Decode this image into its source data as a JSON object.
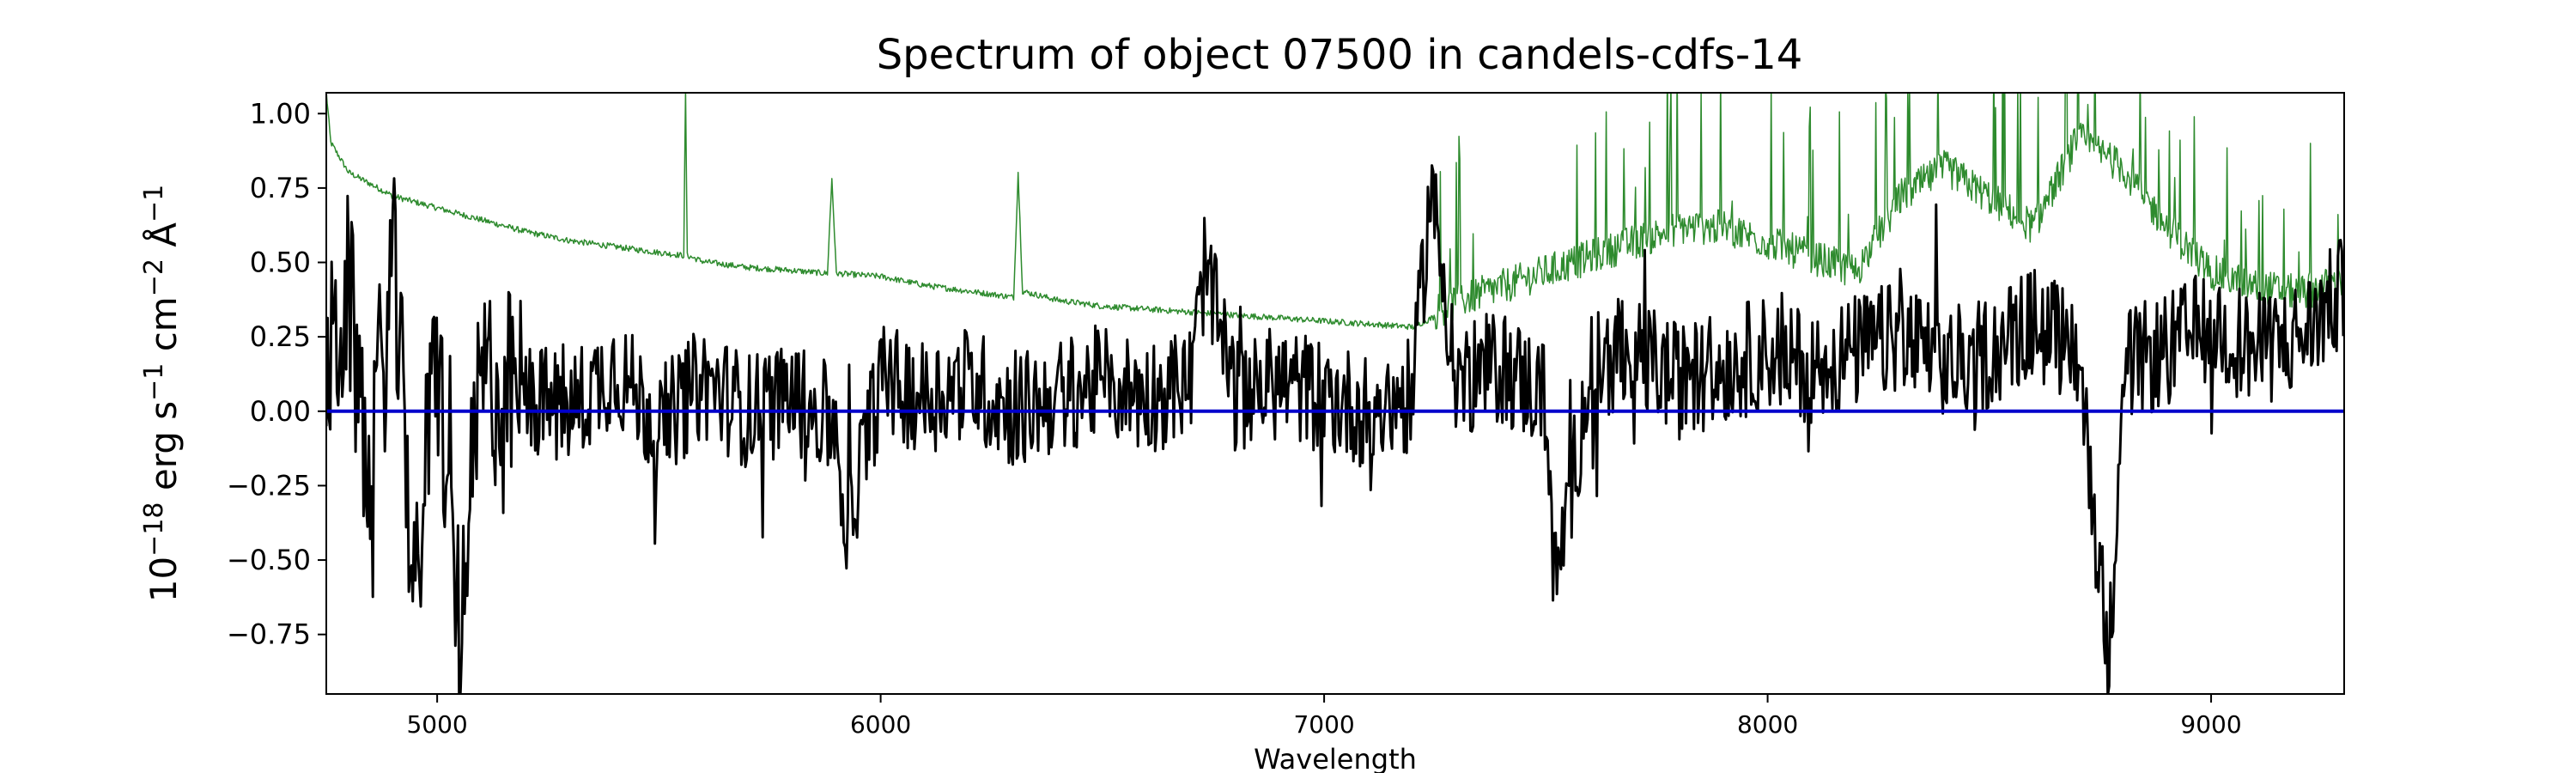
{
  "chart_data": {
    "type": "line",
    "title": "Spectrum of object 07500 in candels-cdfs-14",
    "xlabel": "Wavelength",
    "ylabel": {
      "parts": [
        "10",
        "−18",
        " erg s",
        "−1",
        " cm",
        "−2",
        " Å",
        "−1"
      ]
    },
    "xlim": [
      4750,
      9300
    ],
    "ylim": [
      -0.95,
      1.07
    ],
    "xticks": [
      5000,
      6000,
      7000,
      8000,
      9000
    ],
    "xtick_labels": [
      "5000",
      "6000",
      "7000",
      "8000",
      "9000"
    ],
    "yticks": [
      -0.75,
      -0.5,
      -0.25,
      0.0,
      0.25,
      0.5,
      0.75,
      1.0
    ],
    "ytick_labels": [
      "−0.75",
      "−0.50",
      "−0.25",
      "0.00",
      "0.25",
      "0.50",
      "0.75",
      "1.00"
    ],
    "grid": false,
    "series": [
      {
        "role": "error-spectrum",
        "color": "#2e8b2e",
        "x": [
          4750,
          4760,
          4800,
          4850,
          4900,
          4950,
          5000,
          5100,
          5200,
          5300,
          5400,
          5500,
          5556,
          5560,
          5564,
          5600,
          5700,
          5800,
          5880,
          5890,
          5900,
          6000,
          6100,
          6200,
          6300,
          6310,
          6320,
          6400,
          6500,
          6600,
          6700,
          6800,
          6900,
          7000,
          7100,
          7200,
          7300,
          7400,
          7500,
          7600,
          7700,
          7800,
          7900,
          8000,
          8100,
          8200,
          8300,
          8400,
          8500,
          8600,
          8650,
          8700,
          8800,
          8900,
          9000,
          9100,
          9200,
          9300
        ],
        "y": [
          1.07,
          0.9,
          0.8,
          0.76,
          0.72,
          0.7,
          0.68,
          0.64,
          0.6,
          0.57,
          0.55,
          0.53,
          0.52,
          1.07,
          0.52,
          0.5,
          0.48,
          0.47,
          0.46,
          0.78,
          0.46,
          0.45,
          0.42,
          0.4,
          0.38,
          0.8,
          0.4,
          0.37,
          0.35,
          0.34,
          0.33,
          0.32,
          0.31,
          0.3,
          0.29,
          0.28,
          0.35,
          0.4,
          0.45,
          0.5,
          0.55,
          0.6,
          0.6,
          0.55,
          0.5,
          0.45,
          0.7,
          0.8,
          0.7,
          0.6,
          0.75,
          0.9,
          0.8,
          0.6,
          0.45,
          0.4,
          0.38,
          0.42
        ]
      },
      {
        "role": "spectrum",
        "color": "#000000",
        "x": [
          4750,
          4800,
          4850,
          4900,
          4950,
          5000,
          5050,
          5100,
          5200,
          5300,
          5400,
          5500,
          5600,
          5700,
          5800,
          5900,
          5920,
          6000,
          6100,
          6200,
          6300,
          6400,
          6500,
          6600,
          6700,
          6730,
          6800,
          6900,
          7000,
          7100,
          7200,
          7240,
          7300,
          7400,
          7500,
          7520,
          7600,
          7700,
          7800,
          7900,
          8000,
          8100,
          8200,
          8300,
          8400,
          8500,
          8600,
          8700,
          8770,
          8800,
          8900,
          9000,
          9100,
          9200,
          9300
        ],
        "y": [
          0.1,
          0.4,
          -0.3,
          0.5,
          -0.6,
          0.2,
          -0.75,
          0.1,
          0.05,
          0.0,
          0.15,
          -0.05,
          0.1,
          0.0,
          0.05,
          -0.05,
          -0.4,
          0.1,
          0.05,
          0.1,
          0.0,
          0.05,
          0.1,
          0.05,
          0.1,
          0.48,
          0.05,
          0.1,
          0.05,
          0.0,
          0.05,
          0.76,
          0.1,
          0.15,
          0.05,
          -0.6,
          0.15,
          0.2,
          0.1,
          0.15,
          0.2,
          0.15,
          0.2,
          0.25,
          0.15,
          0.2,
          0.3,
          0.2,
          -0.85,
          0.15,
          0.2,
          0.3,
          0.2,
          0.25,
          0.4
        ]
      },
      {
        "role": "zero-line",
        "color": "#0000cc",
        "x": [
          4750,
          9300
        ],
        "y": [
          0.0,
          0.0
        ]
      }
    ]
  }
}
